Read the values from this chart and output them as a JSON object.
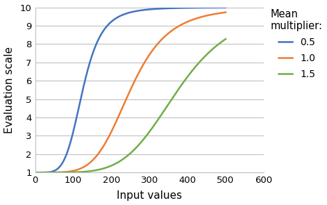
{
  "title": "",
  "xlabel": "Input values",
  "ylabel": "Evaluation scale",
  "xlim": [
    0,
    600
  ],
  "ylim": [
    1,
    10
  ],
  "xticks": [
    0,
    100,
    200,
    300,
    400,
    500,
    600
  ],
  "yticks": [
    1,
    2,
    3,
    4,
    5,
    6,
    7,
    8,
    9,
    10
  ],
  "legend_title": "Mean\nmultiplier:",
  "series": [
    {
      "label": "0.5",
      "multiplier": 0.5,
      "color": "#4472C4"
    },
    {
      "label": "1.0",
      "multiplier": 1.0,
      "color": "#ED7D31"
    },
    {
      "label": "1.5",
      "multiplier": 1.5,
      "color": "#70AD47"
    }
  ],
  "mean_value": 250,
  "spread": 5,
  "ymin": 1,
  "ymax": 10,
  "x_end": 500,
  "background_color": "#FFFFFF",
  "grid_color": "#C0C0C0"
}
